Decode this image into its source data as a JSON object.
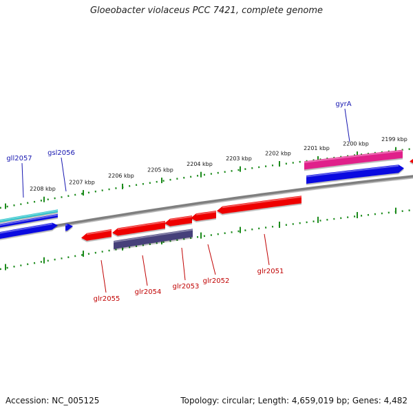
{
  "title": "Gloeobacter violaceus PCC 7421, complete genome",
  "footer": {
    "accession": "Accession: NC_005125",
    "summary": "Topology: circular; Length: 4,659,019 bp; Genes: 4,482"
  },
  "scale_labels": [
    "2208 kbp",
    "2207 kbp",
    "2206 kbp",
    "2205 kbp",
    "2204 kbp",
    "2203 kbp",
    "2202 kbp",
    "2201 kbp",
    "2200 kbp",
    "2199 kbp"
  ],
  "top_gene_labels": [
    "gll2057",
    "gsl2056",
    "gyrA"
  ],
  "bottom_gene_labels": [
    "glr2055",
    "glr2054",
    "glr2053",
    "glr2052",
    "glr2051"
  ],
  "colors": {
    "scale_ticks": "#1a8a1a",
    "backbone": "#7f7f7f",
    "gene_blue": "#0a0ae0",
    "gene_red": "#ee0000",
    "gene_magenta": "#e0208a",
    "gene_cyan": "#20c0c8",
    "gene_slate": "#46407a",
    "label_blue": "#1515b0",
    "label_red": "#c00000"
  }
}
